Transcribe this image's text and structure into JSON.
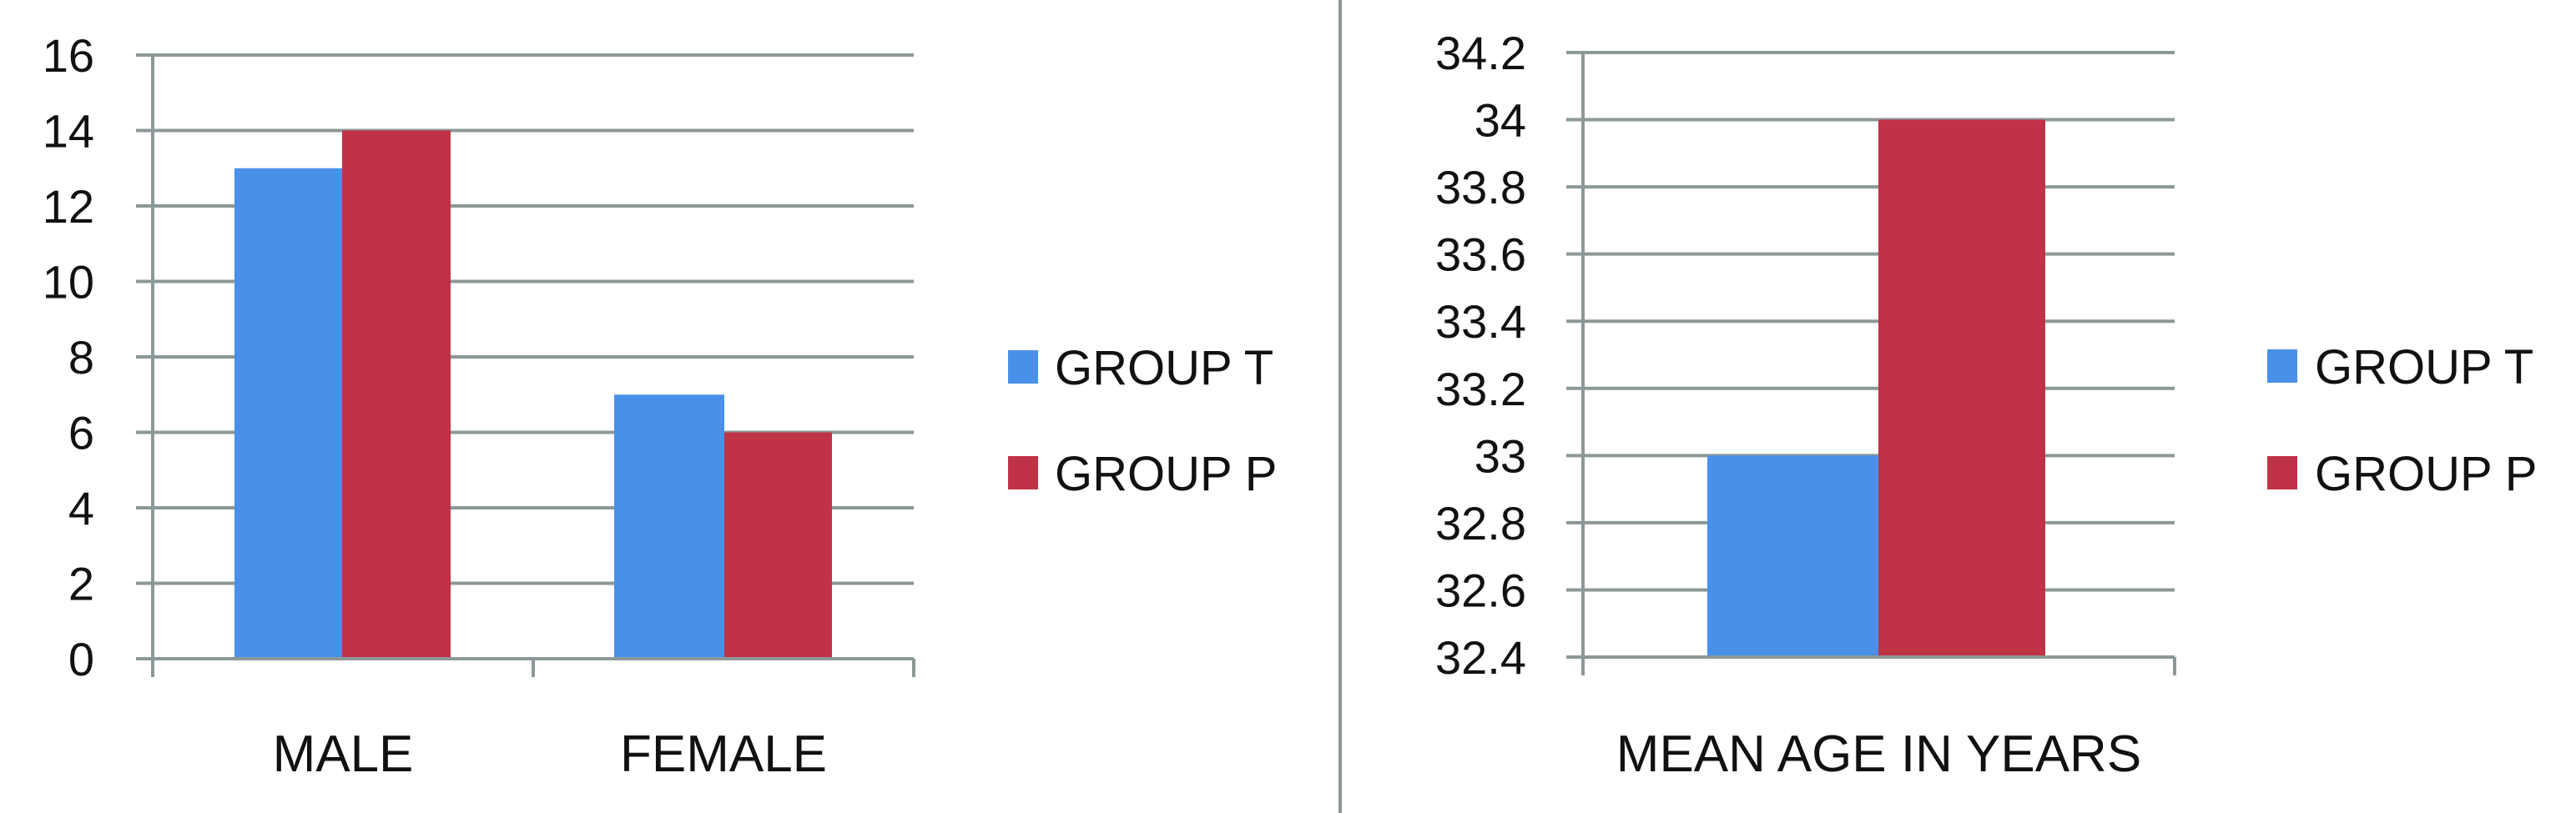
{
  "chart_data": [
    {
      "type": "bar",
      "categories": [
        "MALE",
        "FEMALE"
      ],
      "series": [
        {
          "name": "GROUP T",
          "values": [
            13,
            7
          ],
          "color": "#4A90E8"
        },
        {
          "name": "GROUP P",
          "values": [
            14,
            6
          ],
          "color": "#C03246"
        }
      ],
      "title": "",
      "xlabel": "",
      "ylabel": "",
      "ylim": [
        0,
        16
      ],
      "yticks": [
        "0",
        "2",
        "4",
        "6",
        "8",
        "10",
        "12",
        "14",
        "16"
      ],
      "grid": true,
      "legend": "right"
    },
    {
      "type": "bar",
      "categories": [
        "MEAN AGE IN YEARS"
      ],
      "series": [
        {
          "name": "GROUP T",
          "values": [
            33
          ],
          "color": "#4A90E8"
        },
        {
          "name": "GROUP P",
          "values": [
            34
          ],
          "color": "#C03246"
        }
      ],
      "title": "",
      "xlabel": "",
      "ylabel": "",
      "ylim": [
        32.4,
        34.2
      ],
      "yticks": [
        "32.4",
        "32.6",
        "32.8",
        "33",
        "33.2",
        "33.4",
        "33.6",
        "33.8",
        "34",
        "34.2"
      ],
      "grid": true,
      "legend": "right"
    }
  ],
  "colors": {
    "grid": "#8C9898",
    "divider": "#8C9898"
  }
}
